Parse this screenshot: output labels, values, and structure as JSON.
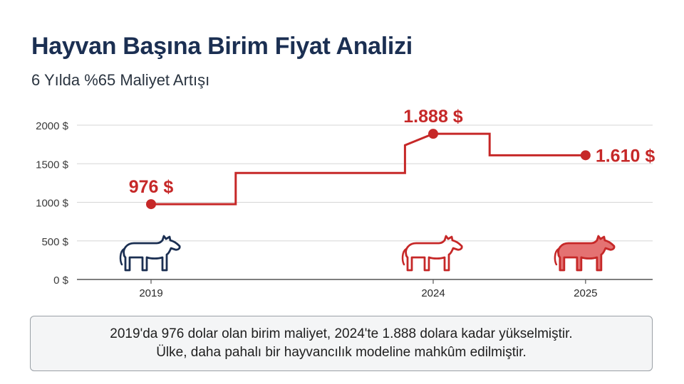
{
  "header": {
    "title": "Hayvan Başına Birim Fiyat Analizi",
    "subtitle": "6 Yılda %65 Maliyet Artışı"
  },
  "colors": {
    "accent": "#c62828",
    "navy": "#1b2f52",
    "grid": "#d6d6d6",
    "axis": "#555555"
  },
  "chart_data": {
    "type": "line",
    "step": true,
    "x": [
      2019,
      2024,
      2025
    ],
    "y_ticks": [
      0,
      500,
      1000,
      1500,
      2000
    ],
    "y_tick_labels": [
      "0 $",
      "500 $",
      "1000 $",
      "1500 $",
      "2000 $"
    ],
    "ylim": [
      0,
      2000
    ],
    "grid": true,
    "series": [
      {
        "points": [
          {
            "x": 2019,
            "y": 976
          },
          {
            "x": 2020.5,
            "y": 976
          },
          {
            "x": 2020.5,
            "y": 1380
          },
          {
            "x": 2023.5,
            "y": 1380
          },
          {
            "x": 2023.5,
            "y": 1740
          },
          {
            "x": 2024,
            "y": 1888
          },
          {
            "x": 2025,
            "y": 1888
          },
          {
            "x": 2025,
            "y": 1610
          },
          {
            "x": 2026.7,
            "y": 1610
          }
        ],
        "markers": [
          {
            "x": 2019,
            "y": 976,
            "label": "976 $"
          },
          {
            "x": 2024,
            "y": 1888,
            "label": "1.888 $"
          },
          {
            "x": 2026.7,
            "y": 1610,
            "label": "1.610 $"
          }
        ]
      }
    ],
    "x_tick_labels": [
      {
        "x": 2019,
        "label": "2019"
      },
      {
        "x": 2024,
        "label": "2024"
      },
      {
        "x": 2026.7,
        "label": "2025"
      }
    ],
    "icons": [
      {
        "name": "cow-icon-2019",
        "x": 2019,
        "style": "outline-navy"
      },
      {
        "name": "cow-icon-2024",
        "x": 2024,
        "style": "outline-red"
      },
      {
        "name": "cow-icon-2025",
        "x": 2026.7,
        "style": "filled-red"
      }
    ]
  },
  "note": {
    "line1": "2019'da 976 dolar olan birim maliyet, 2024'te 1.888 dolara kadar yükselmiştir.",
    "line2": "Ülke, daha pahalı bir hayvancılık modeline mahkûm edilmiştir."
  }
}
